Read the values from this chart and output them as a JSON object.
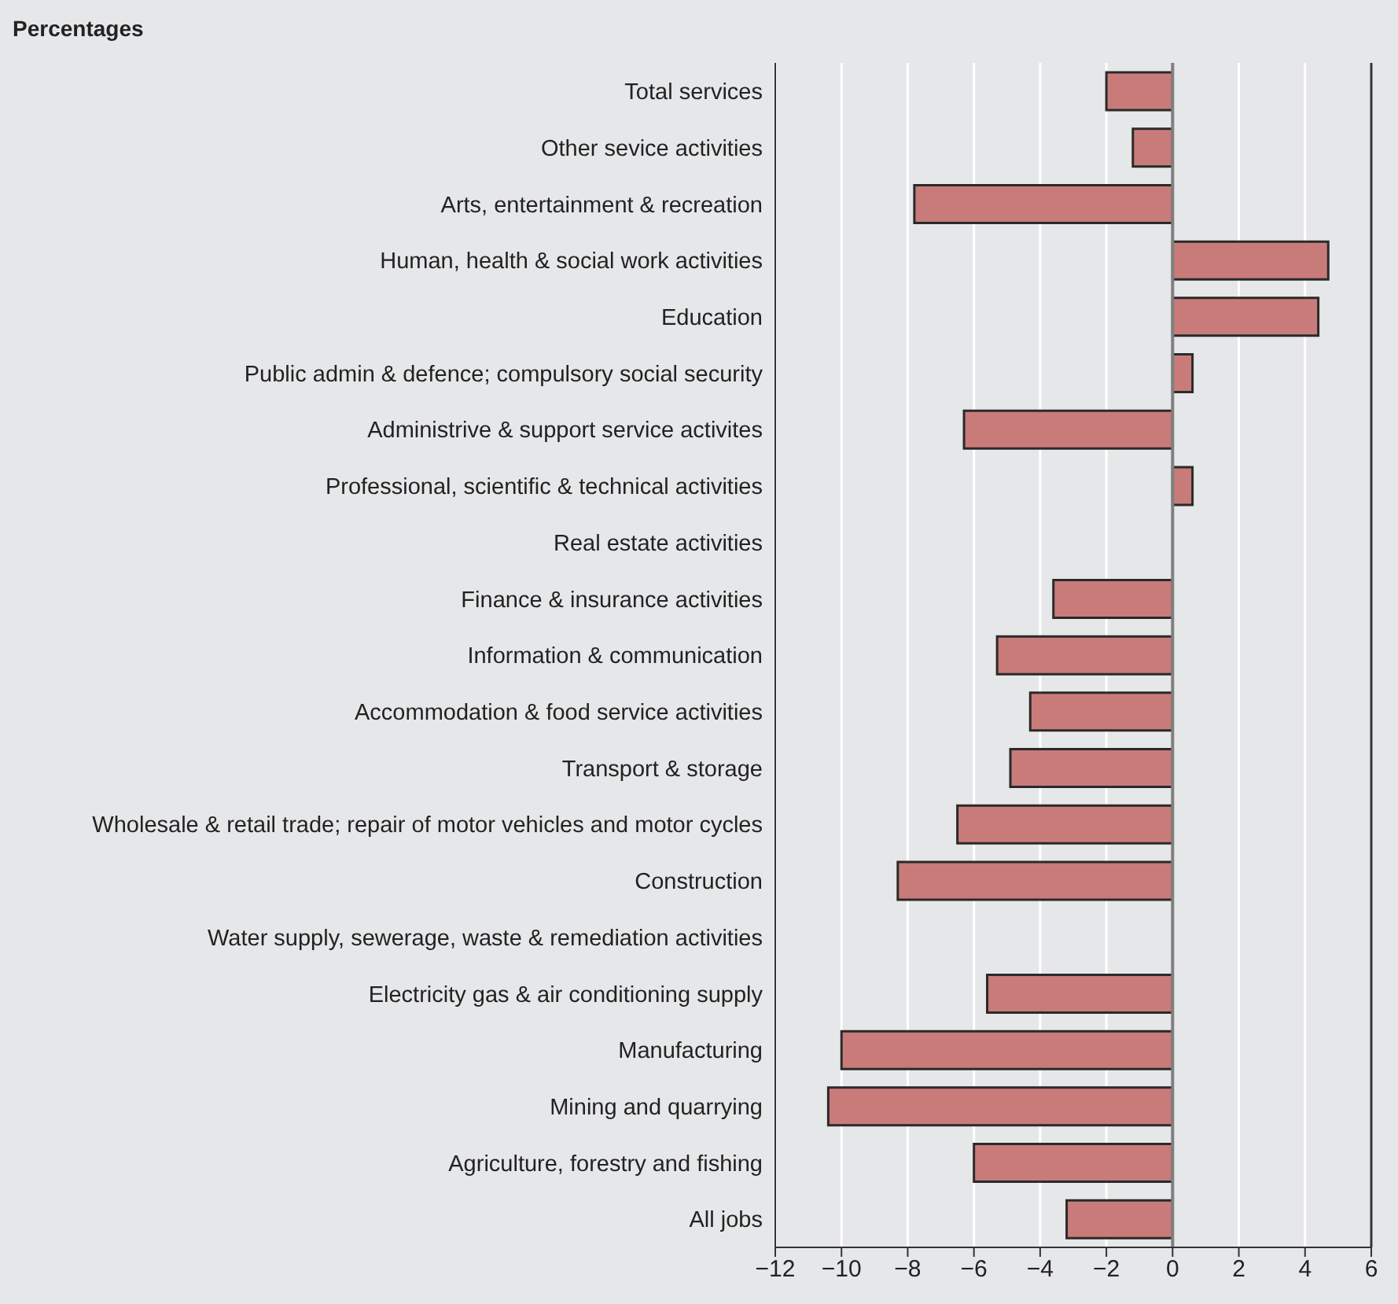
{
  "chart_data": {
    "type": "bar",
    "orientation": "horizontal",
    "title": "Percentages",
    "categories": [
      "Total services",
      "Other sevice activities",
      "Arts, entertainment & recreation",
      "Human, health & social work activities",
      "Education",
      "Public admin & defence; compulsory social security",
      "Administrive & support service activites",
      "Professional, scientific & technical activities",
      "Real estate activities",
      "Finance & insurance activities",
      "Information & communication",
      "Accommodation  & food service activities",
      "Transport & storage",
      "Wholesale & retail trade; repair of motor vehicles and motor cycles",
      "Construction",
      "Water supply, sewerage, waste & remediation activities",
      "Electricity gas & air conditioning supply",
      "Manufacturing",
      "Mining and quarrying",
      "Agriculture, forestry and fishing",
      "All jobs"
    ],
    "values": [
      -2.0,
      -1.2,
      -7.8,
      4.7,
      4.4,
      0.6,
      -6.3,
      0.6,
      0,
      -3.6,
      -5.3,
      -4.3,
      -4.9,
      -6.5,
      -8.3,
      0,
      -5.6,
      -10.0,
      -10.4,
      -6.0,
      -3.2
    ],
    "color": "#c97b7a",
    "xlim": [
      -12,
      6
    ],
    "xticks": [
      -12,
      -10,
      -8,
      -6,
      -4,
      -2,
      0,
      2,
      4,
      6
    ],
    "grid": "x",
    "ref_lines": [
      {
        "axis": "x",
        "value": 0,
        "color": "#7f7f7f"
      }
    ]
  }
}
